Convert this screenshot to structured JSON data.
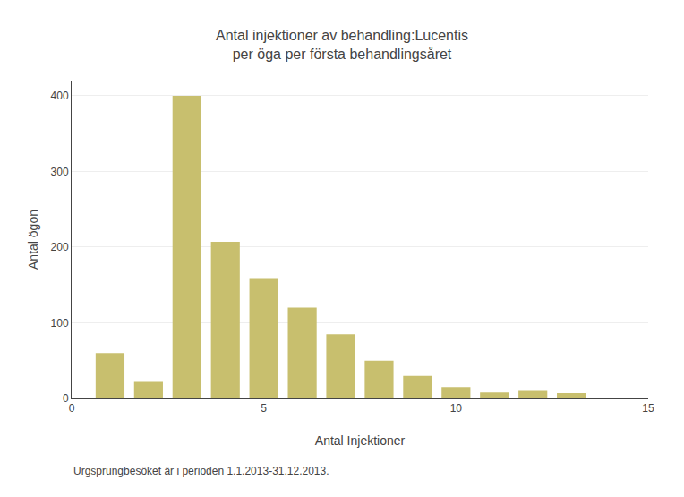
{
  "chart_data": {
    "type": "bar",
    "title": "Antal injektioner av behandling:Lucentis\nper öga per första behandlingsåret",
    "xlabel": "Antal Injektioner",
    "ylabel": "Antal ögon",
    "footnote": "Urgsprungbesöket är i perioden 1.1.2013-31.12.2013.",
    "x": [
      1,
      2,
      3,
      4,
      5,
      6,
      7,
      8,
      9,
      10,
      11,
      12,
      13
    ],
    "values": [
      60,
      22,
      400,
      207,
      158,
      120,
      85,
      50,
      30,
      15,
      8,
      10,
      7
    ],
    "color": "#c8bf6e",
    "xlim": [
      0,
      15
    ],
    "ylim": [
      0,
      420
    ],
    "xticks": [
      0,
      5,
      10,
      15
    ],
    "yticks": [
      0,
      100,
      200,
      300,
      400
    ],
    "grid": true
  }
}
